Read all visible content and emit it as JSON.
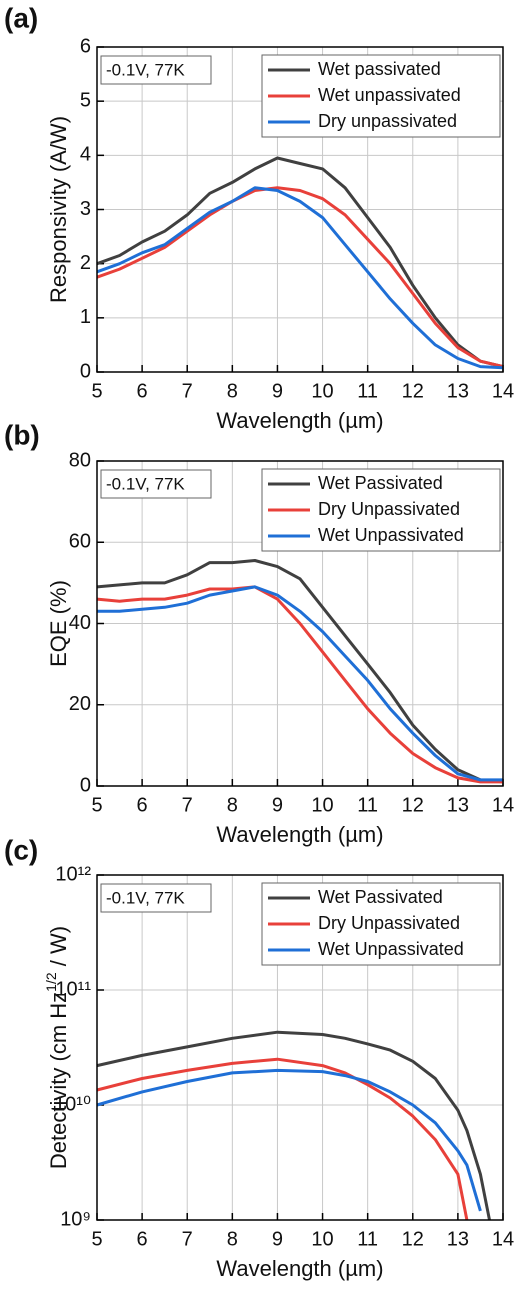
{
  "chart_data": [
    {
      "type": "line",
      "panel": "(a)",
      "annotation": "-0.1V, 77K",
      "xlabel": "Wavelength (µm)",
      "ylabel": "Responsivity (A/W)",
      "xlim": [
        5,
        14
      ],
      "xticks": [
        5,
        6,
        7,
        8,
        9,
        10,
        11,
        12,
        13,
        14
      ],
      "ylim": [
        0,
        6
      ],
      "yticks": [
        0,
        1,
        2,
        3,
        4,
        5,
        6
      ],
      "grid": true,
      "legend": "upper-right",
      "x": [
        5,
        5.5,
        6,
        6.5,
        7,
        7.5,
        8,
        8.5,
        9,
        9.5,
        10,
        10.5,
        11,
        11.5,
        12,
        12.5,
        13,
        13.5,
        14
      ],
      "series": [
        {
          "name": "Wet passivated",
          "color": "#404040",
          "values": [
            2.0,
            2.15,
            2.4,
            2.6,
            2.9,
            3.3,
            3.5,
            3.75,
            3.95,
            3.85,
            3.75,
            3.4,
            2.85,
            2.3,
            1.6,
            1.0,
            0.5,
            0.2,
            0.1
          ]
        },
        {
          "name": "Wet unpassivated",
          "color": "#e8403a",
          "values": [
            1.75,
            1.9,
            2.1,
            2.3,
            2.6,
            2.9,
            3.15,
            3.35,
            3.4,
            3.35,
            3.2,
            2.9,
            2.45,
            2.0,
            1.45,
            0.9,
            0.45,
            0.2,
            0.1
          ]
        },
        {
          "name": "Dry unpassivated",
          "color": "#1f6fd6",
          "values": [
            1.85,
            2.0,
            2.2,
            2.35,
            2.65,
            2.95,
            3.15,
            3.4,
            3.35,
            3.15,
            2.85,
            2.35,
            1.85,
            1.35,
            0.9,
            0.5,
            0.25,
            0.1,
            0.08
          ]
        }
      ]
    },
    {
      "type": "line",
      "panel": "(b)",
      "annotation": "-0.1V, 77K",
      "xlabel": "Wavelength (µm)",
      "ylabel": "EQE (%)",
      "xlim": [
        5,
        14
      ],
      "xticks": [
        5,
        6,
        7,
        8,
        9,
        10,
        11,
        12,
        13,
        14
      ],
      "ylim": [
        0,
        80
      ],
      "yticks": [
        0,
        20,
        40,
        60,
        80
      ],
      "grid": true,
      "legend": "upper-right",
      "x": [
        5,
        5.5,
        6,
        6.5,
        7,
        7.5,
        8,
        8.5,
        9,
        9.5,
        10,
        10.5,
        11,
        11.5,
        12,
        12.5,
        13,
        13.5,
        14
      ],
      "series": [
        {
          "name": "Wet Passivated",
          "color": "#404040",
          "values": [
            49,
            49.5,
            50,
            50,
            52,
            55,
            55,
            55.5,
            54,
            51,
            44,
            37,
            30,
            23,
            15,
            9,
            4,
            1.5,
            1
          ]
        },
        {
          "name": "Dry Unpassivated",
          "color": "#e8403a",
          "values": [
            46,
            45.5,
            46,
            46,
            47,
            48.5,
            48.5,
            49,
            46,
            40,
            33,
            26,
            19,
            13,
            8,
            4.5,
            2,
            1,
            1
          ]
        },
        {
          "name": "Wet Unpassivated",
          "color": "#1f6fd6",
          "values": [
            43,
            43,
            43.5,
            44,
            45,
            47,
            48,
            49,
            47,
            43,
            38,
            32,
            26,
            19,
            13,
            7.5,
            3,
            1.5,
            1.5
          ]
        }
      ]
    },
    {
      "type": "line",
      "panel": "(c)",
      "annotation": "-0.1V, 77K",
      "xlabel": "Wavelength (µm)",
      "ylabel": {
        "text": "Detectivity (cm Hz",
        "sup": "1/2",
        "tail": " / W)"
      },
      "xlim": [
        5,
        14
      ],
      "xticks": [
        5,
        6,
        7,
        8,
        9,
        10,
        11,
        12,
        13,
        14
      ],
      "ylim": [
        1000000000,
        1000000000000
      ],
      "yscale": "log",
      "yticks": [
        {
          "value": 1000000000,
          "label": "10⁹"
        },
        {
          "value": 10000000000,
          "label": "10¹⁰"
        },
        {
          "value": 100000000000,
          "label": "10¹¹"
        },
        {
          "value": 1000000000000,
          "label": "10¹²"
        }
      ],
      "grid": true,
      "legend": "upper-right",
      "x": [
        5,
        6,
        7,
        8,
        9,
        10,
        10.5,
        11,
        11.5,
        12,
        12.5,
        13,
        13.2,
        13.5,
        13.7
      ],
      "series": [
        {
          "name": "Wet Passivated",
          "color": "#404040",
          "values": [
            22000000000,
            27000000000,
            32000000000,
            38000000000,
            43000000000,
            41000000000,
            38000000000,
            34000000000,
            30000000000,
            24000000000,
            17000000000,
            9000000000,
            6000000000,
            2500000000,
            1000000000
          ]
        },
        {
          "name": "Dry Unpassivated",
          "color": "#e8403a",
          "values": [
            13500000000,
            17000000000,
            20000000000,
            23000000000,
            25000000000,
            22000000000,
            19000000000,
            15000000000,
            11500000000,
            8000000000,
            5000000000,
            2500000000,
            1000000000,
            null,
            null
          ]
        },
        {
          "name": "Wet Unpassivated",
          "color": "#1f6fd6",
          "values": [
            10000000000,
            13000000000,
            16000000000,
            19000000000,
            20000000000,
            19500000000,
            18000000000,
            16000000000,
            13000000000,
            10000000000,
            7000000000,
            4000000000,
            3000000000,
            1200000000,
            null
          ]
        }
      ]
    }
  ]
}
